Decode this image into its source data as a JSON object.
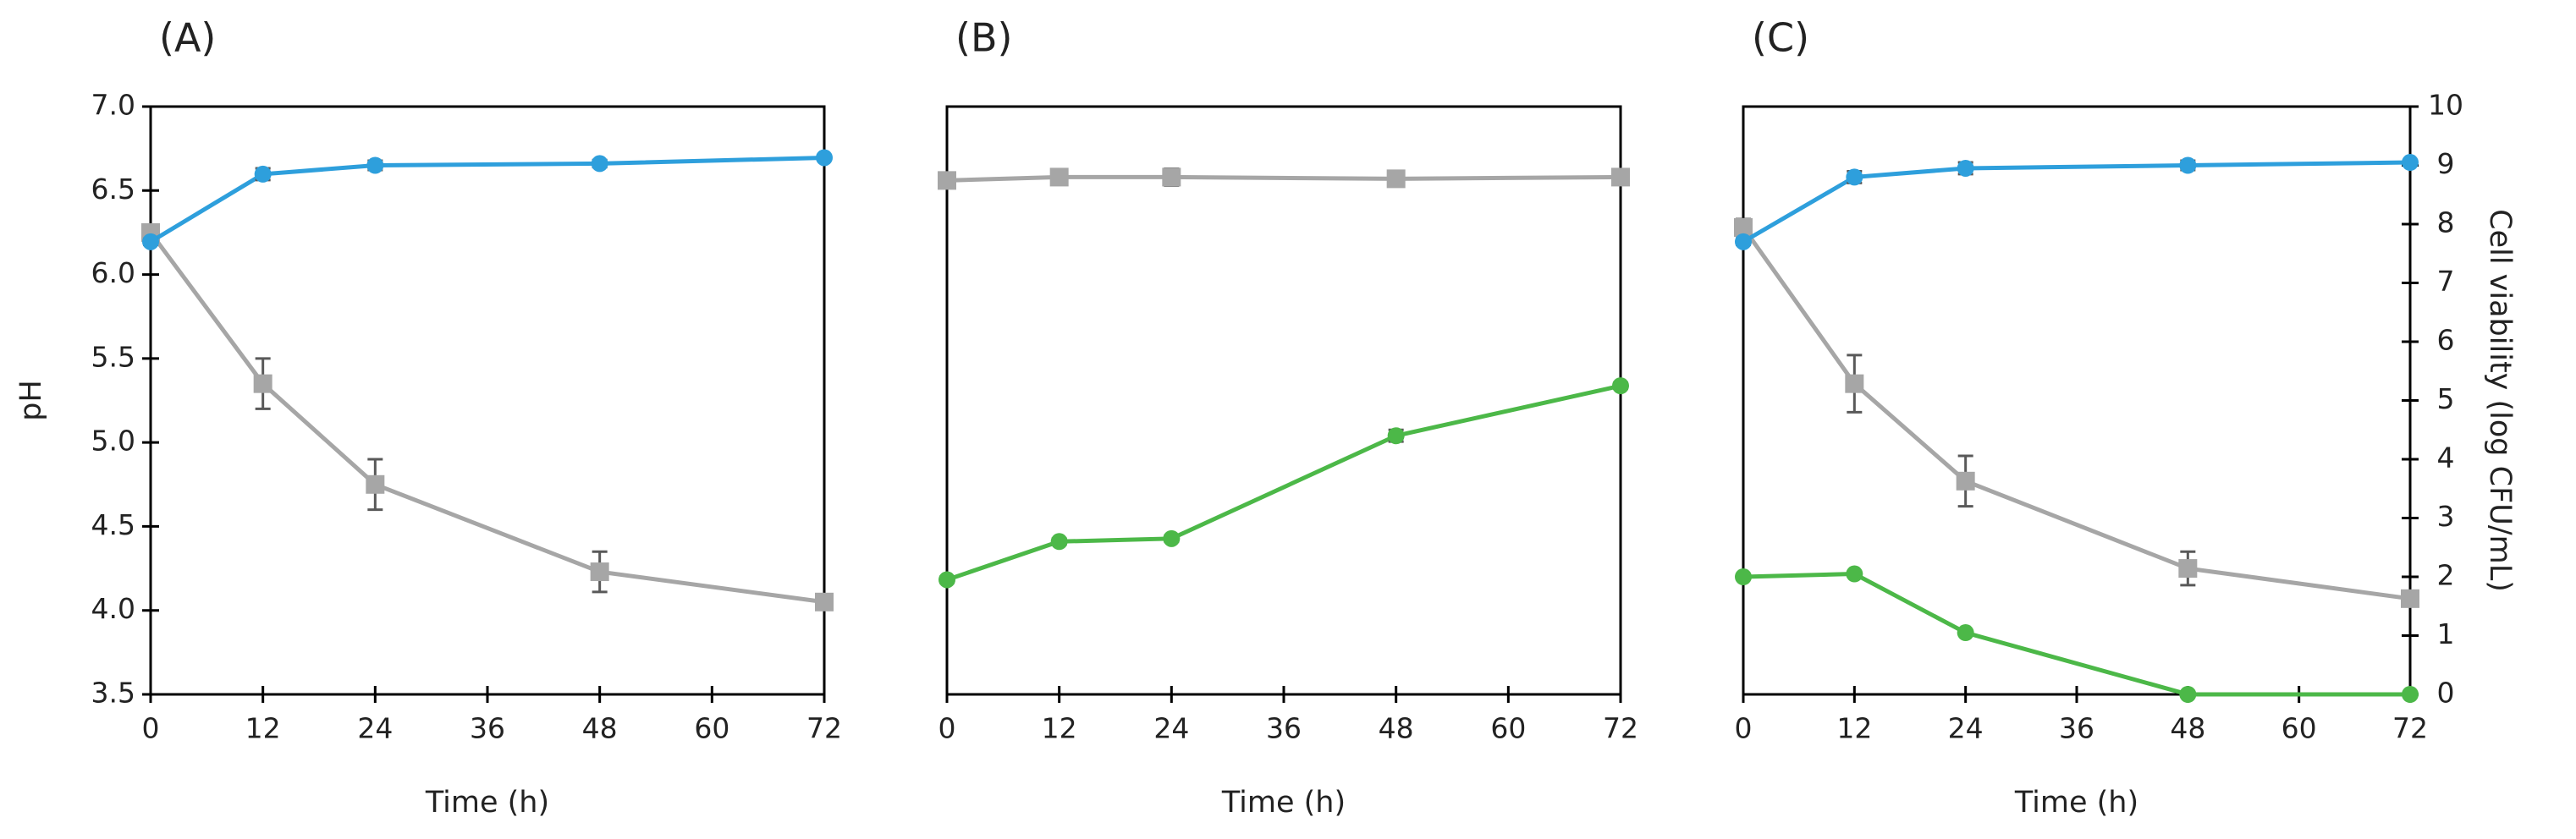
{
  "chart_data": [
    {
      "type": "line",
      "panel_label": "(A)",
      "x_label": "Time (h)",
      "y_label": "pH",
      "x": [
        0,
        12,
        24,
        48,
        72
      ],
      "xlim": [
        0,
        72
      ],
      "xticks": [
        0,
        12,
        24,
        36,
        48,
        60,
        72
      ],
      "ylim": [
        3.5,
        7
      ],
      "yticks": [
        3.5,
        {
          "value": 4,
          "label": "4.0"
        },
        4.5,
        {
          "value": 5,
          "label": "5.0"
        },
        5.5,
        {
          "value": 6,
          "label": "6.0"
        },
        6.5,
        {
          "value": 7,
          "label": "7.0"
        }
      ],
      "y2lim": [
        0,
        10
      ],
      "series": [
        {
          "color": "#a6a6a6",
          "marker": "square",
          "axis": "y",
          "values": [
            6.25,
            5.35,
            4.75,
            4.23,
            4.05
          ],
          "errors": [
            0.03,
            0.15,
            0.15,
            0.12,
            0.02
          ]
        },
        {
          "color": "#2e9fdc",
          "marker": "circle",
          "axis": "y2",
          "values": [
            7.7,
            8.85,
            9.0,
            9.03,
            9.13
          ],
          "errors": [
            0.05,
            0.1,
            0.08,
            0.06,
            0.04
          ]
        }
      ]
    },
    {
      "type": "line",
      "panel_label": "(B)",
      "x_label": "Time (h)",
      "x": [
        0,
        12,
        24,
        48,
        72
      ],
      "xlim": [
        0,
        72
      ],
      "xticks": [
        0,
        12,
        24,
        36,
        48,
        60,
        72
      ],
      "ylim": [
        3.5,
        7
      ],
      "y2lim": [
        0,
        10
      ],
      "series": [
        {
          "color": "#a6a6a6",
          "marker": "square",
          "axis": "y",
          "values": [
            6.56,
            6.58,
            6.58,
            6.57,
            6.58
          ],
          "errors": [
            0.03,
            0.04,
            0.05,
            0.04,
            0.02
          ]
        },
        {
          "color": "#4cb848",
          "marker": "circle",
          "axis": "y2",
          "values": [
            1.95,
            2.6,
            2.65,
            4.4,
            5.25
          ],
          "errors": [
            0.05,
            0.05,
            0.05,
            0.1,
            0.05
          ]
        }
      ]
    },
    {
      "type": "line",
      "panel_label": "(C)",
      "x_label": "Time (h)",
      "y2_label": "Cell viability (log CFU/mL)",
      "x": [
        0,
        12,
        24,
        48,
        72
      ],
      "xlim": [
        0,
        72
      ],
      "xticks": [
        0,
        12,
        24,
        36,
        48,
        60,
        72
      ],
      "ylim": [
        3.5,
        7
      ],
      "y2lim": [
        0,
        10
      ],
      "y2ticks": [
        0,
        1,
        2,
        3,
        4,
        5,
        6,
        7,
        8,
        9,
        10
      ],
      "series": [
        {
          "color": "#a6a6a6",
          "marker": "square",
          "axis": "y",
          "values": [
            6.28,
            5.35,
            4.77,
            4.25,
            4.07
          ],
          "errors": [
            0.05,
            0.17,
            0.15,
            0.1,
            0.03
          ]
        },
        {
          "color": "#2e9fdc",
          "marker": "circle",
          "axis": "y2",
          "values": [
            7.7,
            8.8,
            8.95,
            9.0,
            9.05
          ],
          "errors": [
            0.05,
            0.1,
            0.1,
            0.08,
            0.04
          ]
        },
        {
          "color": "#4cb848",
          "marker": "circle",
          "axis": "y2",
          "values": [
            2.0,
            2.05,
            1.05,
            0,
            0
          ],
          "errors": [
            0.03,
            0.03,
            0.03,
            0,
            0
          ]
        }
      ]
    }
  ]
}
